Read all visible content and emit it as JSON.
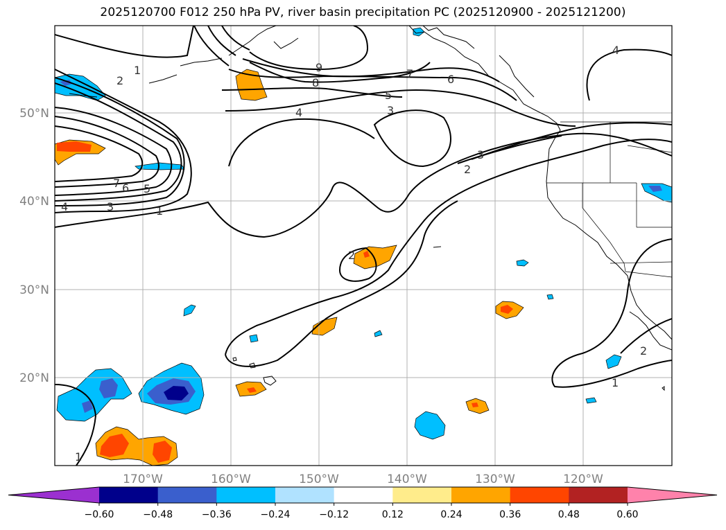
{
  "title": "2025120700 F012 250 hPa PV, river basin precipitation PC (2025120900 - 2025121200)",
  "map": {
    "lat_labels": [
      "50°N",
      "40°N",
      "30°N",
      "20°N"
    ],
    "lon_labels": [
      "170°W",
      "160°W",
      "150°W",
      "140°W",
      "130°W",
      "120°W"
    ],
    "axis_label_color": "#808080",
    "grid_color": "#b0b0b0"
  },
  "contour_labels": {
    "one": "1",
    "two": "2",
    "three": "3",
    "four": "4",
    "five": "5",
    "six": "6",
    "seven": "7",
    "eight": "8",
    "nine": "9"
  },
  "colorbar": {
    "ticks": [
      "−0.60",
      "−0.48",
      "−0.36",
      "−0.24",
      "−0.12",
      "0.12",
      "0.24",
      "0.36",
      "0.48",
      "0.60"
    ],
    "colors": [
      "#9b30d0",
      "#00008b",
      "#3a5fcd",
      "#00bfff",
      "#b0e2ff",
      "#ffffff",
      "#ffec8b",
      "#ffa500",
      "#ff4500",
      "#b22222",
      "#ff82ab"
    ]
  }
}
